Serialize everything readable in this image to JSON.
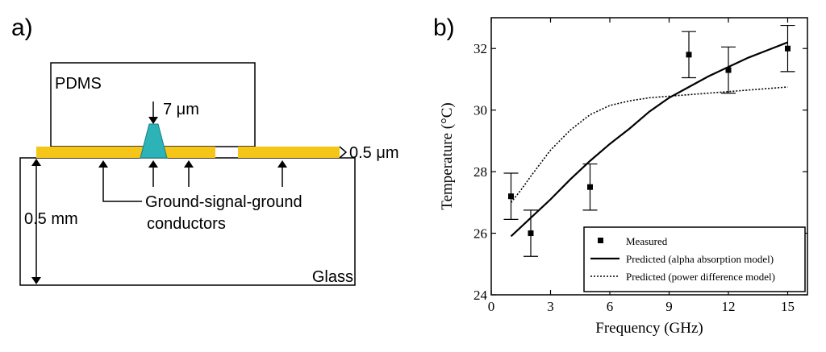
{
  "panel_a": {
    "label": "a)",
    "pdms_label": "PDMS",
    "signal_thickness_label": "7 μm",
    "metal_thickness_label": "0.5 μm",
    "substrate_thickness_label": "0.5 mm",
    "conductors_label_line1": "Ground-signal-ground",
    "conductors_label_line2": "conductors",
    "glass_label": "Glass",
    "colors": {
      "conductor": "#f5c518",
      "signal": "#2bb3b8",
      "outline": "#000000"
    }
  },
  "panel_b": {
    "label": "b)"
  },
  "chart_data": {
    "type": "scatter",
    "title": "",
    "xlabel": "Frequency (GHz)",
    "ylabel": "Temperature (°C)",
    "xlim": [
      0,
      16
    ],
    "ylim": [
      24,
      33
    ],
    "x_ticks": [
      0,
      3,
      6,
      9,
      12,
      15
    ],
    "y_ticks": [
      24,
      26,
      28,
      30,
      32
    ],
    "legend_position": "bottom-right",
    "legend": [
      "Measured",
      "Predicted (alpha absorption model)",
      "Predicted (power difference model)"
    ],
    "measured": {
      "name": "Measured",
      "x": [
        1,
        2,
        5,
        10,
        12,
        15
      ],
      "y": [
        27.2,
        26.0,
        27.5,
        31.8,
        31.3,
        32.0
      ],
      "err": [
        0.75,
        0.75,
        0.75,
        0.75,
        0.75,
        0.75
      ]
    },
    "series": [
      {
        "name": "Predicted (alpha absorption model)",
        "style": "solid",
        "x": [
          1,
          2,
          3,
          4,
          5,
          6,
          7,
          8,
          9,
          10,
          11,
          12,
          13,
          14,
          15
        ],
        "y": [
          25.9,
          26.5,
          27.1,
          27.75,
          28.35,
          28.9,
          29.4,
          29.95,
          30.4,
          30.75,
          31.1,
          31.4,
          31.7,
          31.95,
          32.2
        ]
      },
      {
        "name": "Predicted (power difference model)",
        "style": "dotted",
        "x": [
          1,
          1.5,
          2,
          3,
          4,
          5,
          6,
          7,
          8,
          9,
          10,
          11,
          12,
          13,
          14,
          15
        ],
        "y": [
          27.0,
          27.4,
          27.85,
          28.7,
          29.35,
          29.85,
          30.15,
          30.3,
          30.4,
          30.45,
          30.5,
          30.55,
          30.6,
          30.65,
          30.7,
          30.75
        ]
      }
    ]
  }
}
